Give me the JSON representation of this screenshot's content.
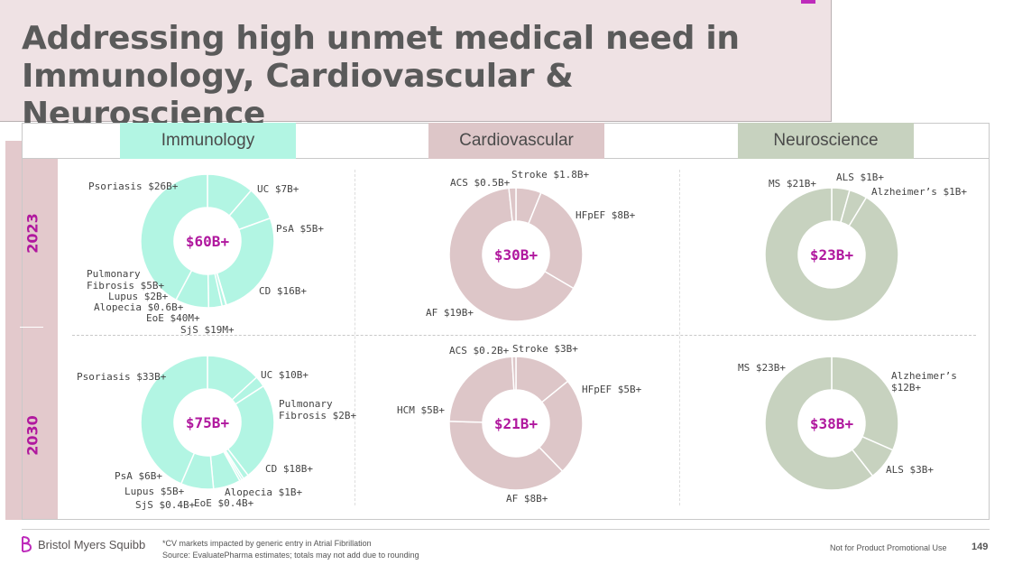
{
  "title": "Addressing high unmet medical need in Immunology, Cardiovascular & Neuroscience",
  "categories": [
    {
      "label": "Immunology",
      "color": "#b2f5e3"
    },
    {
      "label": "Cardiovascular",
      "color": "#ddc6c8"
    },
    {
      "label": "Neuroscience",
      "color": "#c7d2bf"
    }
  ],
  "years": [
    "2023",
    "2030"
  ],
  "chart_data": [
    {
      "type": "pie",
      "donut": true,
      "area": "Immunology",
      "year": "2023",
      "center": "$60B+",
      "color": "#b2f5e3",
      "slices": [
        {
          "label": "UC $7B+",
          "value": 7
        },
        {
          "label": "PsA $5B+",
          "value": 5
        },
        {
          "label": "CD $16B+",
          "value": 16
        },
        {
          "label": "SjS $19M+",
          "value": 0.019
        },
        {
          "label": "EoE $40M+",
          "value": 0.04
        },
        {
          "label": "Alopecia $0.6B+",
          "value": 0.6
        },
        {
          "label": "Lupus $2B+",
          "value": 2
        },
        {
          "label": "Pulmonary Fibrosis $5B+",
          "value": 5
        },
        {
          "label": "Psoriasis $26B+",
          "value": 26
        }
      ]
    },
    {
      "type": "pie",
      "donut": true,
      "area": "Cardiovascular",
      "year": "2023",
      "center": "$30B+",
      "color": "#ddc6c8",
      "slices": [
        {
          "label": "Stroke $1.8B+",
          "value": 1.8
        },
        {
          "label": "HFpEF $8B+",
          "value": 8
        },
        {
          "label": "AF $19B+",
          "value": 19
        },
        {
          "label": "ACS $0.5B+",
          "value": 0.5
        }
      ]
    },
    {
      "type": "pie",
      "donut": true,
      "area": "Neuroscience",
      "year": "2023",
      "center": "$23B+",
      "color": "#c7d2bf",
      "slices": [
        {
          "label": "ALS $1B+",
          "value": 1
        },
        {
          "label": "Alzheimer’s $1B+",
          "value": 1
        },
        {
          "label": "MS $21B+",
          "value": 21
        }
      ]
    },
    {
      "type": "pie",
      "donut": true,
      "area": "Immunology",
      "year": "2030",
      "center": "$75B+",
      "color": "#b2f5e3",
      "slices": [
        {
          "label": "UC $10B+",
          "value": 10
        },
        {
          "label": "Pulmonary Fibrosis $2B+",
          "value": 2
        },
        {
          "label": "CD $18B+",
          "value": 18
        },
        {
          "label": "Alopecia $1B+",
          "value": 1
        },
        {
          "label": "EoE $0.4B+",
          "value": 0.4
        },
        {
          "label": "SjS $0.4B+",
          "value": 0.4
        },
        {
          "label": "Lupus $5B+",
          "value": 5
        },
        {
          "label": "PsA $6B+",
          "value": 6
        },
        {
          "label": "Psoriasis $33B+",
          "value": 33
        }
      ]
    },
    {
      "type": "pie",
      "donut": true,
      "area": "Cardiovascular",
      "year": "2030",
      "center": "$21B+",
      "color": "#ddc6c8",
      "slices": [
        {
          "label": "Stroke $3B+",
          "value": 3
        },
        {
          "label": "HFpEF $5B+",
          "value": 5
        },
        {
          "label": "AF $8B+",
          "value": 8
        },
        {
          "label": "HCM $5B+",
          "value": 5
        },
        {
          "label": "ACS $0.2B+",
          "value": 0.2
        }
      ]
    },
    {
      "type": "pie",
      "donut": true,
      "area": "Neuroscience",
      "year": "2030",
      "center": "$38B+",
      "color": "#c7d2bf",
      "slices": [
        {
          "label": "Alzheimer’s $12B+",
          "value": 12
        },
        {
          "label": "ALS $3B+",
          "value": 3
        },
        {
          "label": "MS $23B+",
          "value": 23
        }
      ]
    }
  ],
  "footer": {
    "logo": "Bristol Myers Squibb",
    "note1": "*CV markets impacted by generic entry in Atrial Fibrillation",
    "note2": "Source: EvaluatePharma estimates; totals may not add due to rounding",
    "promo": "Not for Product Promotional Use",
    "page": "149"
  }
}
